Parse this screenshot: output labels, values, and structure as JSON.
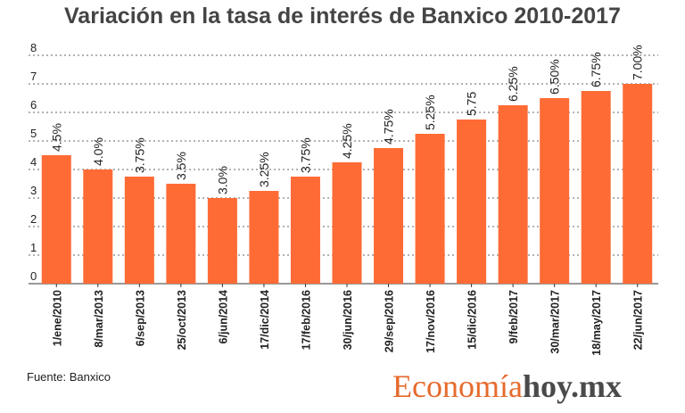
{
  "title": "Variación en la tasa de interés de Banxico 2010-2017",
  "source": "Fuente: Banxico",
  "logo": {
    "part1": "Economía",
    "part2": "hoy.mx"
  },
  "colors": {
    "bar": "#ff6b35",
    "grid": "#666666",
    "text": "#222222"
  },
  "chart_data": {
    "type": "bar",
    "title": "Variación en la tasa de interés de Banxico 2010-2017",
    "xlabel": "",
    "ylabel": "",
    "ylim": [
      0,
      8
    ],
    "yticks": [
      "0",
      "1",
      "2",
      "3",
      "4",
      "5",
      "6",
      "7",
      "8"
    ],
    "grid": true,
    "categories": [
      "1/ene/2010",
      "8/mar/2013",
      "6/sep/2013",
      "25/oct/2013",
      "6/jun/2014",
      "17/dic/2014",
      "17/feb/2016",
      "30/jun/2016",
      "29/sep/2016",
      "17/nov/2016",
      "15/dic/2016",
      "9/feb/2017",
      "30/mar/2017",
      "18/may/2017",
      "22/jun/2017"
    ],
    "values": [
      4.5,
      4.0,
      3.75,
      3.5,
      3.0,
      3.25,
      3.75,
      4.25,
      4.75,
      5.25,
      5.75,
      6.25,
      6.5,
      6.75,
      7.0
    ],
    "labels": [
      "4.5%",
      "4.0%",
      "3.75%",
      "3.5%",
      "3.0%",
      "3.25%",
      "3.75%",
      "4.25%",
      "4.75%",
      "5.25%",
      "5.75",
      "6.25%",
      "6.50%",
      "6.75%",
      "7.00%"
    ]
  }
}
